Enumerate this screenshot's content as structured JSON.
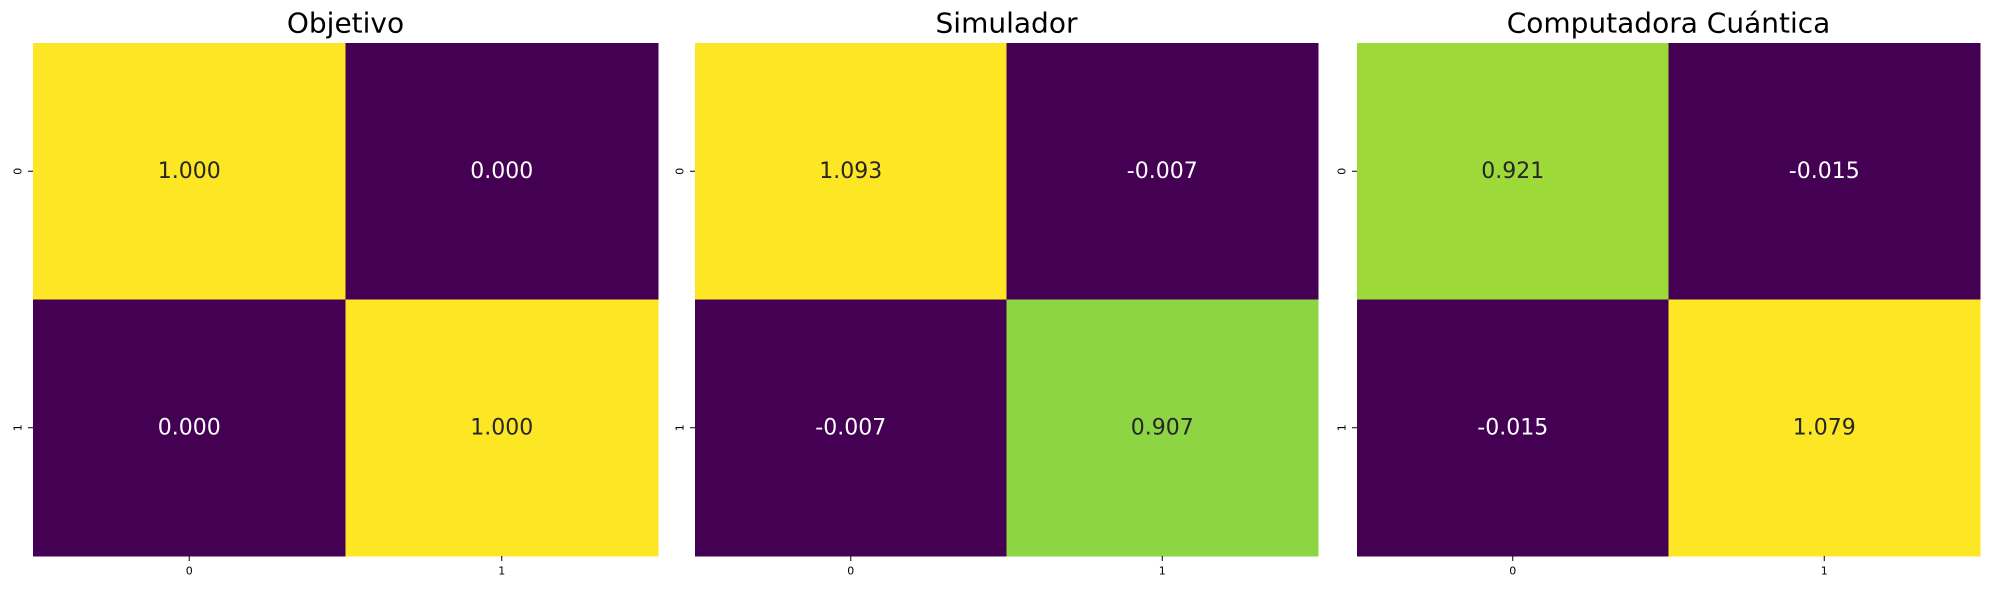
{
  "chart_data": [
    {
      "type": "heatmap",
      "title": "Objetivo",
      "rows": [
        "0",
        "1"
      ],
      "cols": [
        "0",
        "1"
      ],
      "values": [
        [
          1.0,
          0.0
        ],
        [
          0.0,
          1.0
        ]
      ],
      "labels": [
        [
          "1.000",
          "0.000"
        ],
        [
          "0.000",
          "1.000"
        ]
      ],
      "colorbar": false
    },
    {
      "type": "heatmap",
      "title": "Simulador",
      "rows": [
        "0",
        "1"
      ],
      "cols": [
        "0",
        "1"
      ],
      "values": [
        [
          1.093,
          -0.007
        ],
        [
          -0.007,
          0.907
        ]
      ],
      "labels": [
        [
          "1.093",
          "-0.007"
        ],
        [
          "-0.007",
          "0.907"
        ]
      ],
      "colorbar": false
    },
    {
      "type": "heatmap",
      "title": "Computadora Cuántica",
      "rows": [
        "0",
        "1"
      ],
      "cols": [
        "0",
        "1"
      ],
      "values": [
        [
          0.921,
          -0.015
        ],
        [
          -0.015,
          1.079
        ]
      ],
      "labels": [
        [
          "0.921",
          "-0.015"
        ],
        [
          "-0.015",
          "1.079"
        ]
      ],
      "colorbar": false
    }
  ],
  "colormap": "viridis"
}
